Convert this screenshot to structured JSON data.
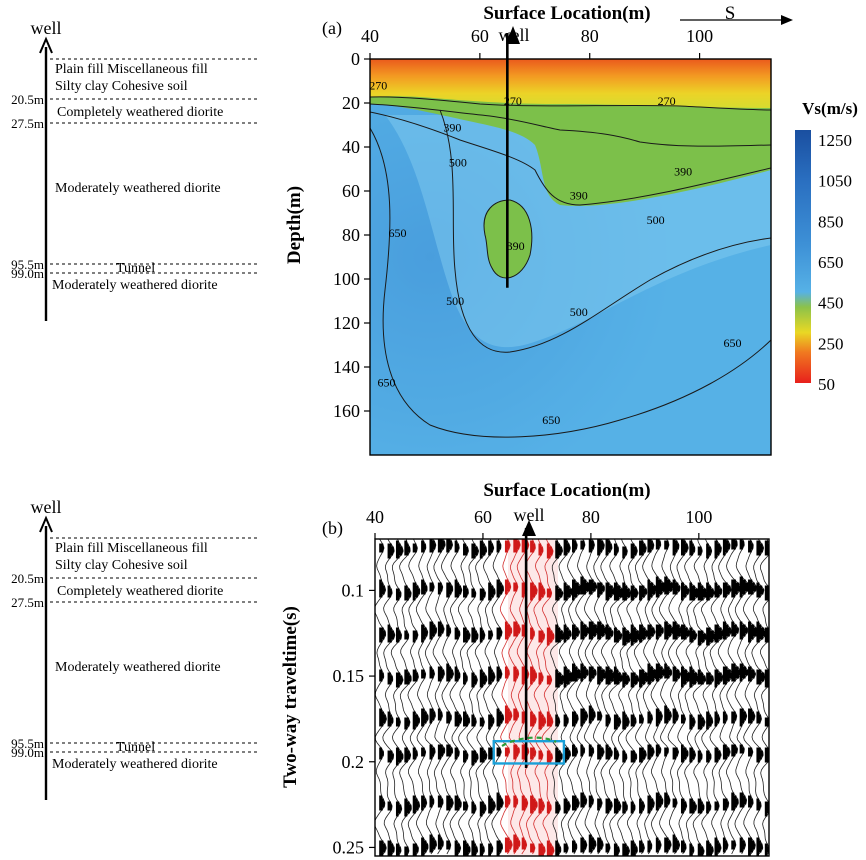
{
  "chart_data": [
    {
      "panel": "(a)",
      "type": "heatmap",
      "title": "Surface Location(m)",
      "xlabel": "Surface Location(m)",
      "ylabel": "Depth(m)",
      "x_ticks": [
        40,
        60,
        80,
        100
      ],
      "y_ticks": [
        0,
        20,
        40,
        60,
        80,
        100,
        120,
        140,
        160
      ],
      "xlim": [
        40,
        113
      ],
      "ylim": [
        0,
        180
      ],
      "direction_label": "S",
      "well_label": "well",
      "well_x": 65,
      "well_bottom_depth": 104,
      "colorbar": {
        "title": "Vs(m/s)",
        "ticks": [
          1250,
          1050,
          850,
          650,
          450,
          250,
          50
        ],
        "colors": [
          "#1a4fa0",
          "#2a6fc0",
          "#3d90d6",
          "#56b1e6",
          "#8cc24a",
          "#e9d824",
          "#f07820",
          "#e8201c"
        ]
      },
      "contour_labels": [
        {
          "text": "270",
          "x": 41.5,
          "y": 13
        },
        {
          "text": "270",
          "x": 66,
          "y": 20
        },
        {
          "text": "270",
          "x": 94,
          "y": 20
        },
        {
          "text": "390",
          "x": 55,
          "y": 32
        },
        {
          "text": "390",
          "x": 78,
          "y": 63
        },
        {
          "text": "390",
          "x": 97,
          "y": 52
        },
        {
          "text": "390",
          "x": 66.5,
          "y": 86
        },
        {
          "text": "500",
          "x": 56,
          "y": 48
        },
        {
          "text": "500",
          "x": 92,
          "y": 74
        },
        {
          "text": "500",
          "x": 55.5,
          "y": 111
        },
        {
          "text": "500",
          "x": 78,
          "y": 116
        },
        {
          "text": "650",
          "x": 45,
          "y": 80
        },
        {
          "text": "650",
          "x": 43,
          "y": 148
        },
        {
          "text": "650",
          "x": 73,
          "y": 165
        },
        {
          "text": "650",
          "x": 106,
          "y": 130
        }
      ]
    },
    {
      "panel": "(b)",
      "type": "wiggle",
      "title": "Surface Location(m)",
      "xlabel": "Surface Location(m)",
      "ylabel": "Two-way traveltime(s)",
      "x_ticks": [
        40,
        60,
        80,
        100
      ],
      "y_ticks": [
        0.1,
        0.15,
        0.2,
        0.25
      ],
      "xlim": [
        40,
        113
      ],
      "ylim": [
        0.07,
        0.255
      ],
      "well_label": "well",
      "well_x": 68,
      "highlight_box": {
        "x_range": [
          62,
          75
        ],
        "t_range": [
          0.188,
          0.201
        ]
      },
      "reflector_times": [
        0.075,
        0.1,
        0.125,
        0.15,
        0.175,
        0.195,
        0.225,
        0.25
      ],
      "trace_count": 47
    }
  ],
  "well_log": {
    "title": "well",
    "depth_marks": [
      "20.5m",
      "27.5m",
      "95.5m",
      "99.0m"
    ],
    "layers": [
      "Plain fill Miscellaneous fill",
      "Silty clay Cohesive soil",
      "Completely weathered diorite",
      "Moderately weathered diorite",
      "Tunnel",
      "Moderately weathered diorite"
    ]
  }
}
